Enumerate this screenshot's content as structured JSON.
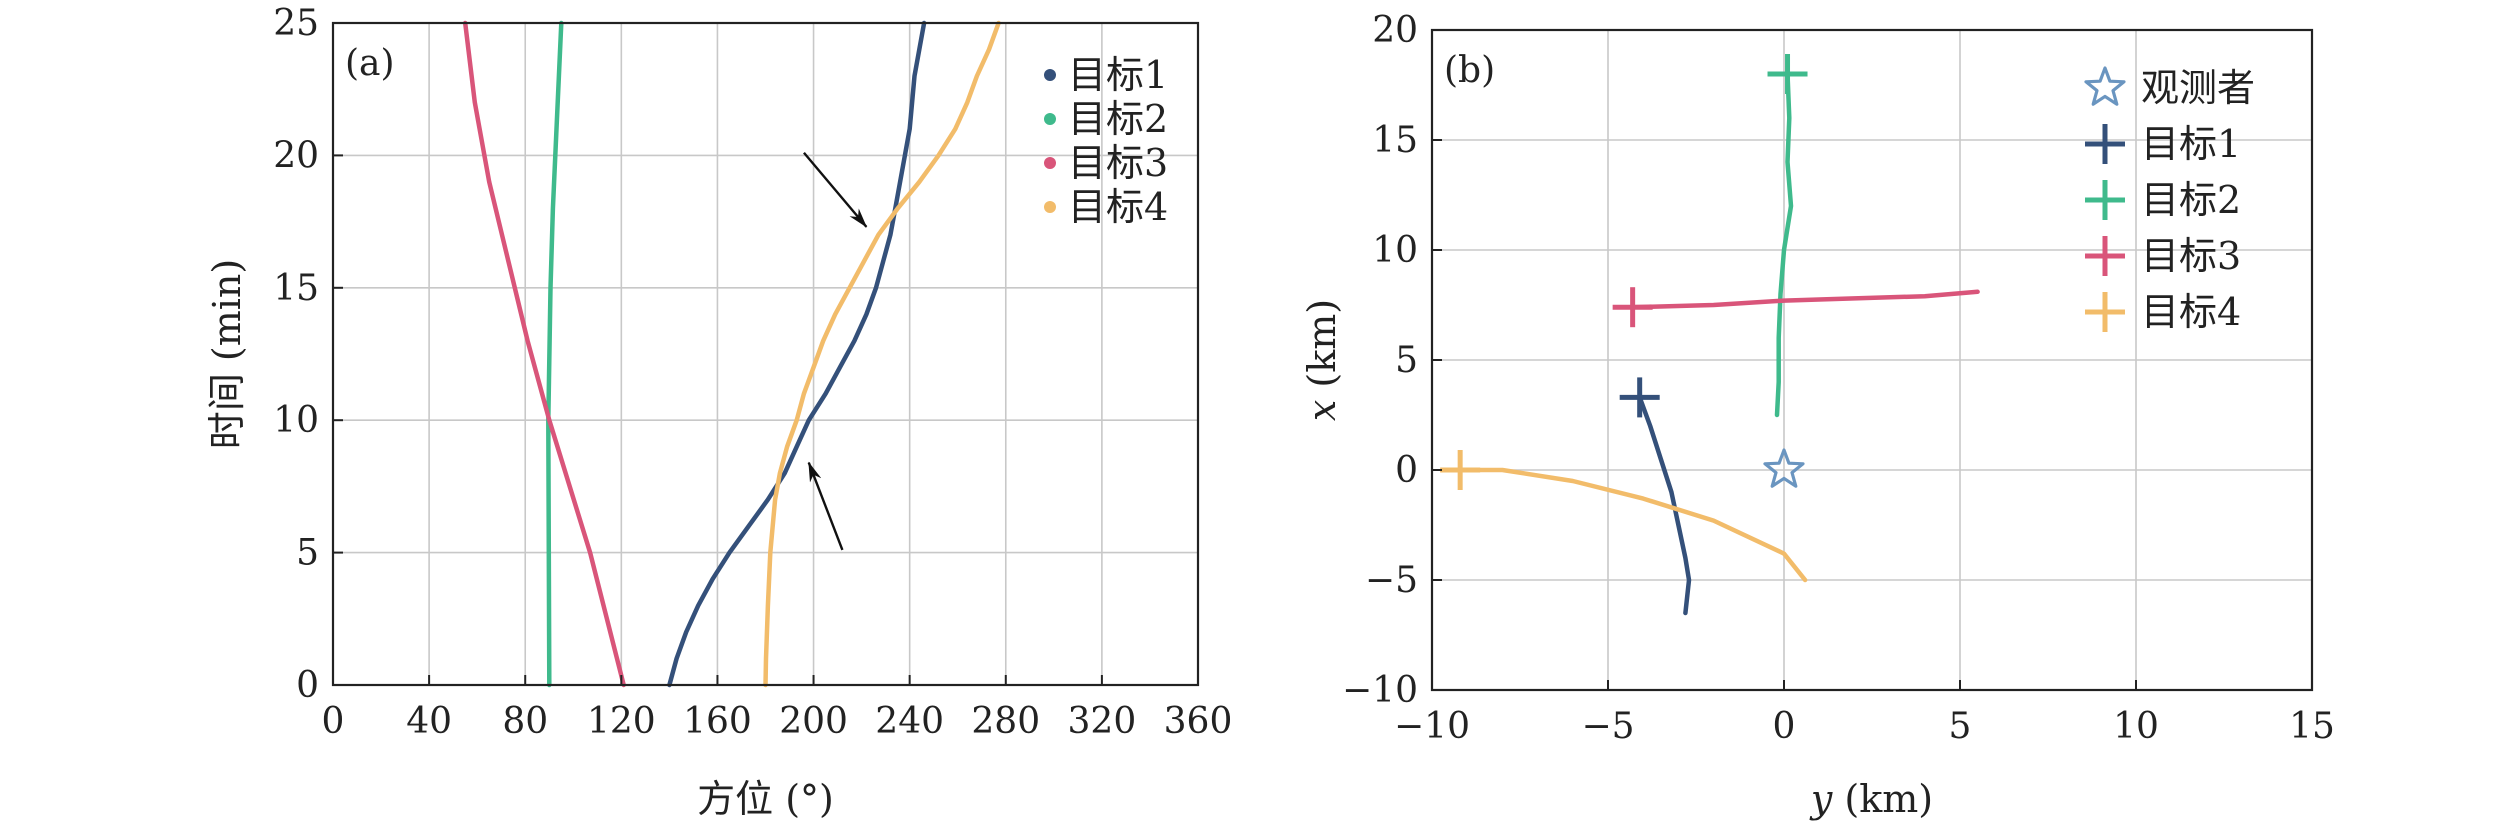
{
  "chart_data": [
    {
      "type": "line",
      "panel_label": "(a)",
      "xlabel": "方位 (°)",
      "ylabel": "时间 (min)",
      "xlim": [
        0,
        360
      ],
      "ylim": [
        0,
        25
      ],
      "xticks": [
        0,
        40,
        80,
        120,
        160,
        200,
        240,
        280,
        320,
        360
      ],
      "yticks": [
        0,
        5,
        10,
        15,
        20,
        25
      ],
      "grid": true,
      "legend_position": "top-right",
      "legend_marker": "dot",
      "series": [
        {
          "name": "目标1",
          "color": "#34507a",
          "points": [
            [
              140,
              0
            ],
            [
              143,
              1
            ],
            [
              147,
              2
            ],
            [
              152,
              3
            ],
            [
              158,
              4
            ],
            [
              165,
              5
            ],
            [
              173,
              6
            ],
            [
              181,
              7
            ],
            [
              188,
              8
            ],
            [
              193,
              9
            ],
            [
              198,
              10
            ],
            [
              205,
              11
            ],
            [
              211,
              12
            ],
            [
              217,
              13
            ],
            [
              222,
              14
            ],
            [
              226,
              15
            ],
            [
              229,
              16
            ],
            [
              232,
              17
            ],
            [
              234,
              18
            ],
            [
              236,
              19
            ],
            [
              238,
              20
            ],
            [
              240,
              21
            ],
            [
              241,
              22
            ],
            [
              242,
              23
            ],
            [
              244,
              24
            ],
            [
              246,
              25
            ]
          ]
        },
        {
          "name": "目标2",
          "color": "#3fba8c",
          "points": [
            [
              90,
              0
            ],
            [
              89.8,
              5
            ],
            [
              89.6,
              10
            ],
            [
              90.5,
              15
            ],
            [
              91.5,
              18
            ],
            [
              93,
              21
            ],
            [
              94,
              23
            ],
            [
              95,
              25
            ]
          ]
        },
        {
          "name": "目标3",
          "color": "#d9557a",
          "points": [
            [
              121,
              0
            ],
            [
              107,
              5
            ],
            [
              90,
              10
            ],
            [
              81,
              13
            ],
            [
              73,
              16
            ],
            [
              65,
              19
            ],
            [
              59,
              22
            ],
            [
              55,
              25
            ]
          ]
        },
        {
          "name": "目标4",
          "color": "#f2bc6a",
          "points": [
            [
              180,
              0
            ],
            [
              180.2,
              1
            ],
            [
              181,
              3
            ],
            [
              182,
              5
            ],
            [
              184,
              7
            ],
            [
              186,
              8
            ],
            [
              189,
              9
            ],
            [
              193,
              10
            ],
            [
              196,
              11
            ],
            [
              200,
              12
            ],
            [
              204,
              13
            ],
            [
              209,
              14
            ],
            [
              215,
              15
            ],
            [
              221,
              16
            ],
            [
              227,
              17
            ],
            [
              235,
              18
            ],
            [
              244,
              19
            ],
            [
              252,
              20
            ],
            [
              259,
              21
            ],
            [
              264,
              22
            ],
            [
              268,
              23
            ],
            [
              273,
              24
            ],
            [
              277,
              25
            ]
          ]
        }
      ],
      "annotations": [
        {
          "type": "arrow",
          "from": [
            196,
            20.1
          ],
          "to": [
            222,
            17.3
          ]
        },
        {
          "type": "arrow",
          "from": [
            212,
            5.1
          ],
          "to": [
            198,
            8.4
          ]
        }
      ]
    },
    {
      "type": "line",
      "panel_label": "(b)",
      "xlabel_var": "y",
      "xlabel_unit": " (km)",
      "ylabel_var": "x",
      "ylabel_unit": " (km)",
      "xlim": [
        -10,
        15
      ],
      "ylim": [
        -10,
        20
      ],
      "xticks": [
        -10,
        -5,
        0,
        5,
        10,
        15
      ],
      "xtick_labels": [
        "−10",
        "−5",
        "0",
        "5",
        "10",
        "15"
      ],
      "yticks": [
        -10,
        -5,
        0,
        5,
        10,
        15,
        20
      ],
      "ytick_labels": [
        "−10",
        "−5",
        "0",
        "5",
        "10",
        "15",
        "20"
      ],
      "grid": true,
      "legend_position": "top-right",
      "observer": {
        "name": "观测者",
        "position": [
          0,
          0
        ],
        "marker": "star",
        "color": "#6a95c0"
      },
      "series": [
        {
          "name": "目标1",
          "color": "#34507a",
          "start": [
            -4.1,
            3.3
          ],
          "points": [
            [
              -4.1,
              3.3
            ],
            [
              -3.8,
              2.0
            ],
            [
              -3.5,
              0.5
            ],
            [
              -3.2,
              -1.0
            ],
            [
              -3.0,
              -2.5
            ],
            [
              -2.8,
              -4.0
            ],
            [
              -2.7,
              -5.0
            ],
            [
              -2.8,
              -6.5
            ]
          ]
        },
        {
          "name": "目标2",
          "color": "#3fba8c",
          "start": [
            0.1,
            18.0
          ],
          "points": [
            [
              0.1,
              18.0
            ],
            [
              0.15,
              16.0
            ],
            [
              0.1,
              14.0
            ],
            [
              0.2,
              12.0
            ],
            [
              0.0,
              10.0
            ],
            [
              -0.1,
              8.0
            ],
            [
              -0.15,
              6.0
            ],
            [
              -0.15,
              4.0
            ],
            [
              -0.2,
              2.5
            ]
          ]
        },
        {
          "name": "目标3",
          "color": "#d9557a",
          "start": [
            -4.3,
            7.4
          ],
          "points": [
            [
              -4.3,
              7.4
            ],
            [
              -2.0,
              7.5
            ],
            [
              0.0,
              7.7
            ],
            [
              2.0,
              7.8
            ],
            [
              4.0,
              7.9
            ],
            [
              5.5,
              8.1
            ]
          ]
        },
        {
          "name": "目标4",
          "color": "#f2bc6a",
          "start": [
            -9.2,
            0.0
          ],
          "points": [
            [
              -9.2,
              0.0
            ],
            [
              -8.0,
              0.0
            ],
            [
              -6.0,
              -0.5
            ],
            [
              -4.0,
              -1.3
            ],
            [
              -2.0,
              -2.3
            ],
            [
              0.0,
              -3.8
            ],
            [
              0.6,
              -5.0
            ]
          ]
        }
      ]
    }
  ]
}
